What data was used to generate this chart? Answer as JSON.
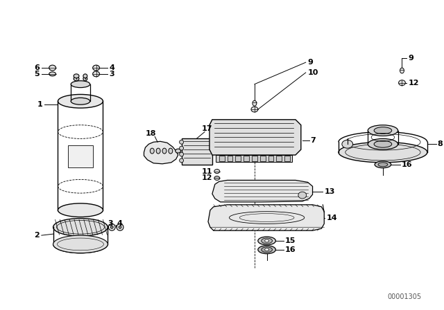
{
  "background_color": "#ffffff",
  "line_color": "#000000",
  "diagram_id": "00001305",
  "fig_width": 6.4,
  "fig_height": 4.48,
  "dpi": 100
}
